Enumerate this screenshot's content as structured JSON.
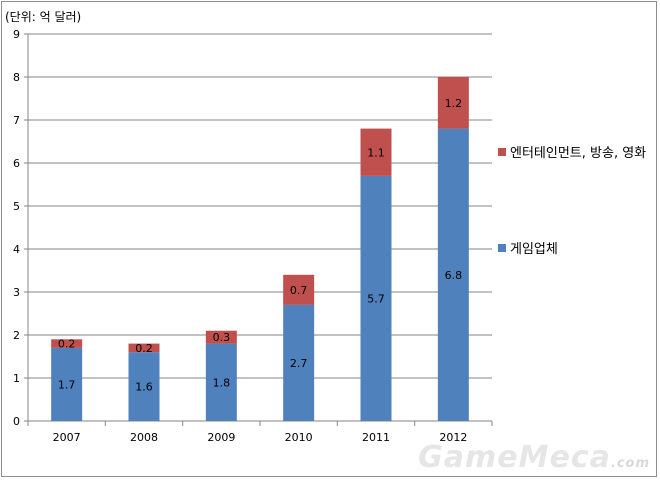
{
  "unit_label": "(단위: 억 달러)",
  "watermark": {
    "brand": "GameMeca",
    "suffix": ".com"
  },
  "colors": {
    "game": "#4f81bd",
    "entertainment": "#c0504d",
    "grid": "#868686"
  },
  "chart_data": {
    "type": "bar",
    "stacked": true,
    "categories": [
      "2007",
      "2008",
      "2009",
      "2010",
      "2011",
      "2012"
    ],
    "series": [
      {
        "name": "게임업체",
        "values": [
          1.7,
          1.6,
          1.8,
          2.7,
          5.7,
          6.8
        ],
        "color": "#4f81bd"
      },
      {
        "name": "엔터테인먼트, 방송, 영화",
        "values": [
          0.2,
          0.2,
          0.3,
          0.7,
          1.1,
          1.2
        ],
        "color": "#c0504d"
      }
    ],
    "ylim": [
      0,
      9
    ],
    "yticks": [
      "0",
      "1",
      "2",
      "3",
      "4",
      "5",
      "6",
      "7",
      "8",
      "9"
    ],
    "grid": true,
    "legend": "right"
  }
}
